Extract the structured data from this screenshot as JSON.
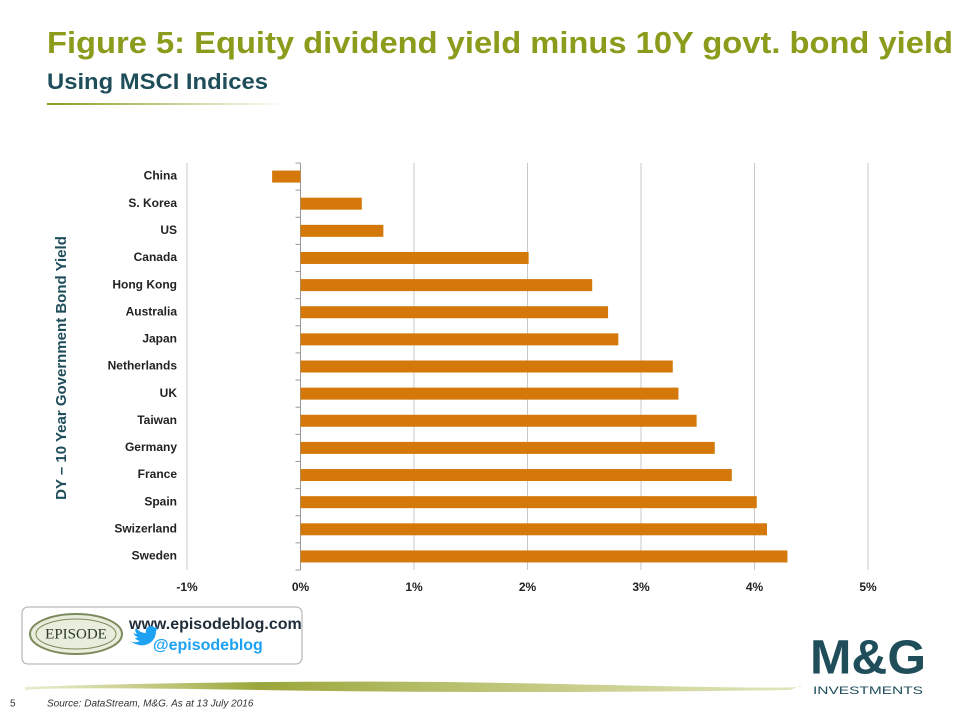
{
  "chart_data": {
    "type": "barh",
    "title": "Figure 5: Equity dividend yield minus 10Y govt. bond yield",
    "subtitle": "Using MSCI Indices",
    "ylabel": "DY – 10 Year Government Bond Yield",
    "categories": [
      "China",
      "S. Korea",
      "US",
      "Canada",
      "Hong Kong",
      "Australia",
      "Japan",
      "Netherlands",
      "UK",
      "Taiwan",
      "Germany",
      "France",
      "Spain",
      "Swizerland",
      "Sweden"
    ],
    "values": [
      -0.25,
      0.54,
      0.73,
      2.01,
      2.57,
      2.71,
      2.8,
      3.28,
      3.33,
      3.49,
      3.65,
      3.8,
      4.02,
      4.11,
      4.29
    ],
    "color": "#d4780a",
    "xlim": [
      -1,
      5
    ],
    "xticks": [
      {
        "value": -1,
        "label": "-1%"
      },
      {
        "value": 0,
        "label": "0%"
      },
      {
        "value": 1,
        "label": "1%"
      },
      {
        "value": 2,
        "label": "2%"
      },
      {
        "value": 3,
        "label": "3%"
      },
      {
        "value": 4,
        "label": "4%"
      },
      {
        "value": 5,
        "label": "5%"
      }
    ],
    "grid": true
  },
  "slide": {
    "page": "5",
    "source": "Source: DataStream, M&G. As at 13 July 2016",
    "website": "www.episodeblog.com",
    "twitter": "@episodeblog",
    "logo": "EPISODE",
    "brand": "M&G",
    "brand_sub": "INVESTMENTS"
  }
}
